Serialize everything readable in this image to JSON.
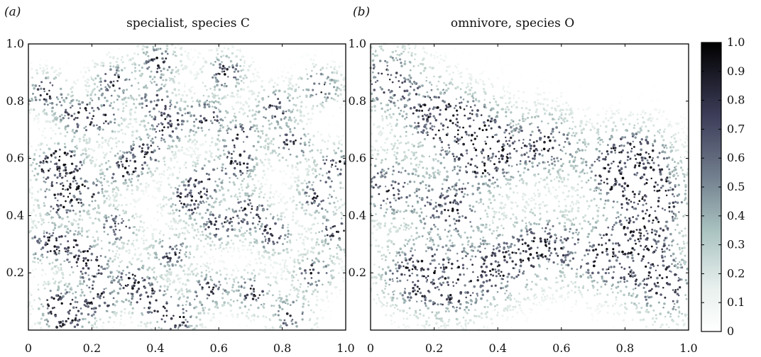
{
  "chart_data": [
    {
      "type": "heatmap",
      "panel_label": "(a)",
      "title": "specialist, species C",
      "xlim": [
        0,
        1.0
      ],
      "ylim": [
        0,
        1.0
      ],
      "x_ticks": [
        "0",
        "0.2",
        "0.4",
        "0.6",
        "0.8",
        "1.0"
      ],
      "y_ticks": [
        "0.2",
        "0.4",
        "0.6",
        "0.8",
        "1.0"
      ],
      "grid": false,
      "pattern": "many small dense clusters of high values scattered over a pale background",
      "dense_clusters": [
        [
          0.41,
          0.94
        ],
        [
          0.27,
          0.87
        ],
        [
          0.05,
          0.83
        ],
        [
          0.62,
          0.9
        ],
        [
          0.12,
          0.59
        ],
        [
          0.07,
          0.57
        ],
        [
          0.3,
          0.56
        ],
        [
          0.18,
          0.48
        ],
        [
          0.1,
          0.45
        ],
        [
          0.05,
          0.3
        ],
        [
          0.14,
          0.29
        ],
        [
          0.28,
          0.36
        ],
        [
          0.2,
          0.22
        ],
        [
          0.33,
          0.17
        ],
        [
          0.45,
          0.27
        ],
        [
          0.55,
          0.52
        ],
        [
          0.66,
          0.58
        ],
        [
          0.7,
          0.42
        ],
        [
          0.77,
          0.33
        ],
        [
          0.6,
          0.36
        ],
        [
          0.91,
          0.47
        ],
        [
          0.97,
          0.58
        ],
        [
          0.83,
          0.65
        ],
        [
          0.78,
          0.78
        ],
        [
          0.92,
          0.85
        ],
        [
          0.09,
          0.1
        ],
        [
          0.22,
          0.1
        ],
        [
          0.12,
          0.02
        ],
        [
          0.39,
          0.1
        ],
        [
          0.47,
          0.04
        ],
        [
          0.57,
          0.14
        ],
        [
          0.71,
          0.13
        ],
        [
          0.83,
          0.05
        ],
        [
          0.9,
          0.2
        ],
        [
          0.97,
          0.34
        ],
        [
          0.45,
          0.71
        ],
        [
          0.56,
          0.75
        ],
        [
          0.37,
          0.62
        ],
        [
          0.23,
          0.74
        ],
        [
          0.15,
          0.75
        ],
        [
          0.67,
          0.68
        ],
        [
          0.5,
          0.45
        ],
        [
          0.4,
          0.8
        ]
      ]
    },
    {
      "type": "heatmap",
      "panel_label": "(b)",
      "title": "omnivore, species O",
      "xlim": [
        0,
        1.0
      ],
      "ylim": [
        0,
        1.0
      ],
      "x_ticks": [
        "0",
        "0.2",
        "0.4",
        "0.6",
        "0.8",
        "1.0"
      ],
      "y_ticks": [
        "0.2",
        "0.4",
        "0.6",
        "0.8",
        "1.0"
      ],
      "grid": false,
      "pattern": "fewer, larger patches of high values with wide pale regions",
      "dense_clusters": [
        [
          0.2,
          0.75
        ],
        [
          0.32,
          0.7
        ],
        [
          0.13,
          0.2
        ],
        [
          0.25,
          0.15
        ],
        [
          0.74,
          0.25
        ],
        [
          0.84,
          0.3
        ],
        [
          0.84,
          0.6
        ],
        [
          0.78,
          0.55
        ],
        [
          0.05,
          0.88
        ],
        [
          0.25,
          0.42
        ],
        [
          0.36,
          0.6
        ],
        [
          0.55,
          0.65
        ],
        [
          0.55,
          0.3
        ],
        [
          0.4,
          0.22
        ],
        [
          0.05,
          0.5
        ],
        [
          0.93,
          0.15
        ],
        [
          0.9,
          0.45
        ]
      ]
    }
  ],
  "colorbar": {
    "ticks": [
      "1.0",
      "0.9",
      "0.8",
      "0.7",
      "0.6",
      "0.5",
      "0.4",
      "0.3",
      "0.2",
      "0.1",
      "0"
    ],
    "range": [
      0,
      1.0
    ],
    "colormap": "bone_r (white to black through grey-teal)",
    "colors": [
      "#ffffff",
      "#d4e2de",
      "#9fb6b4",
      "#56566f",
      "#000000"
    ]
  }
}
